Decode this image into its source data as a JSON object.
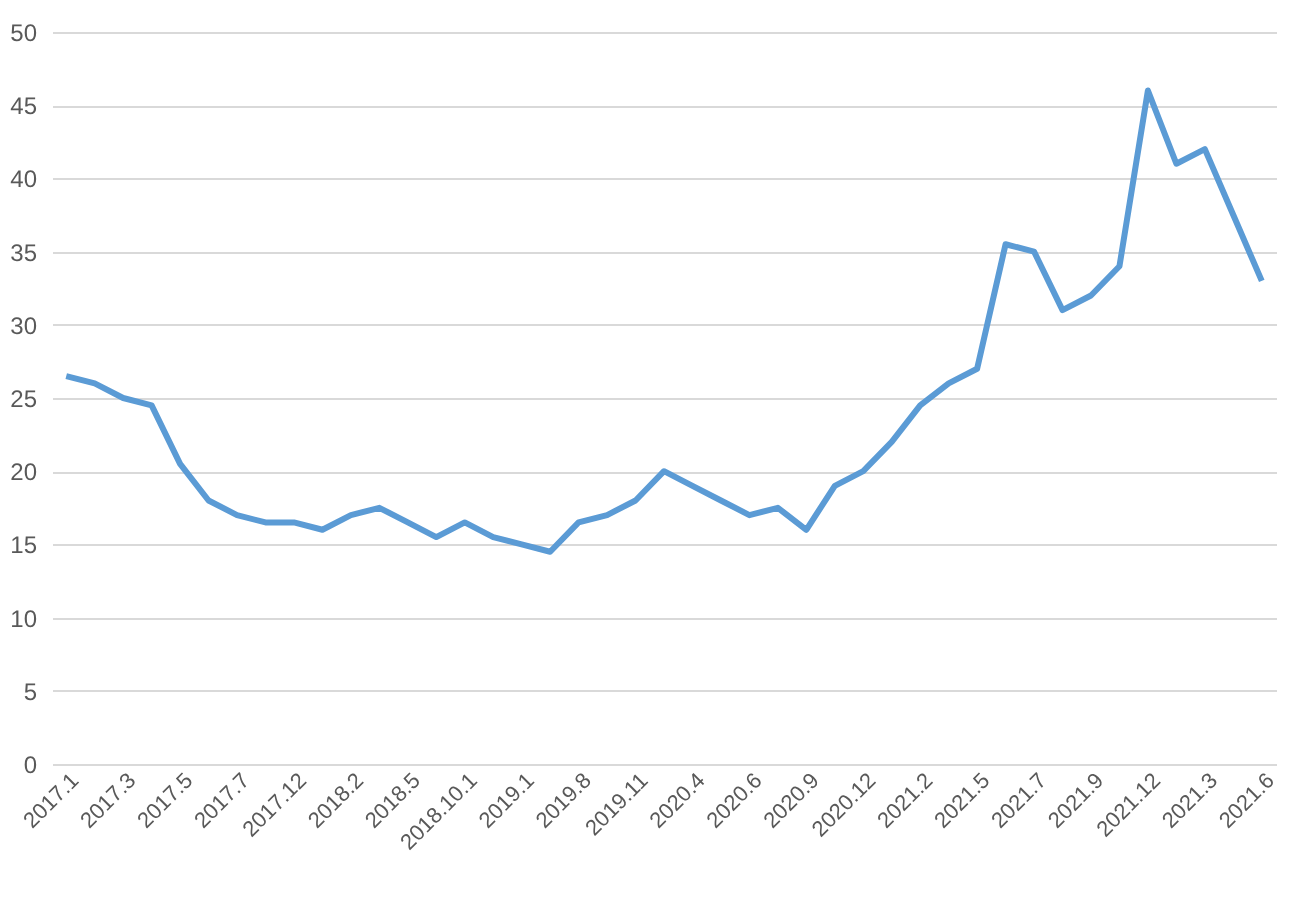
{
  "chart_data": {
    "type": "line",
    "categories": [
      "2017.1",
      null,
      "2017.3",
      null,
      "2017.5",
      null,
      "2017.7",
      null,
      "2017.12",
      null,
      "2018.2",
      null,
      "2018.5",
      null,
      "2018.10.1",
      null,
      "2019.1",
      null,
      "2019.8",
      null,
      "2019.11",
      null,
      "2020.4",
      null,
      "2020.6",
      null,
      "2020.9",
      null,
      "2020.12",
      null,
      "2021.2",
      null,
      "2021.5",
      null,
      "2021.7",
      null,
      "2021.9",
      null,
      "2021.12",
      null,
      "2021.3",
      null,
      "2021.6"
    ],
    "series": [
      {
        "color": "#5b9bd5",
        "values": [
          26.5,
          26,
          25,
          24.5,
          20.5,
          18,
          17,
          16.5,
          16.5,
          16,
          17,
          17.5,
          16.5,
          15.5,
          16.5,
          15.5,
          15,
          14.5,
          16.5,
          17,
          18,
          20,
          19,
          18,
          17,
          17.5,
          16,
          19,
          20,
          22,
          24.5,
          26,
          27,
          35.5,
          35,
          31,
          32,
          34,
          46,
          41,
          42,
          37.5,
          33
        ]
      }
    ],
    "ylim": [
      0,
      50
    ],
    "yticks": [
      0,
      5,
      10,
      15,
      20,
      25,
      30,
      35,
      40,
      45,
      50
    ],
    "grid": "y"
  }
}
